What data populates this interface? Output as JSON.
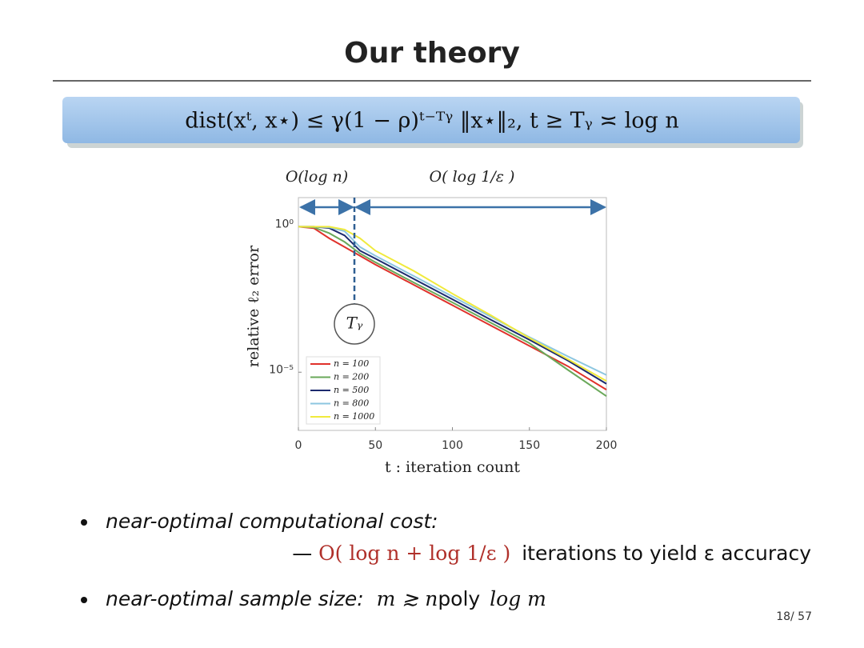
{
  "slide": {
    "title": "Our theory",
    "formula": "dist(xᵗ, x⋆) ≤ γ(1 − ρ)ᵗ⁻ᵀᵞ ‖x⋆‖₂,    t ≥ Tᵧ ≍ log n",
    "annotations": [
      "O(log n)",
      "O( log 1/ε )",
      "Tᵧ"
    ],
    "bullets": [
      {
        "label": "near-optimal computational cost:",
        "dash": "—",
        "formula": "O( log n + log 1/ε )",
        "text": "iterations to yield ε accuracy"
      },
      {
        "label": "near-optimal sample size:",
        "formula": "m ≳ n",
        "text": "poly",
        "formula_tail": "log m"
      }
    ],
    "page": "18/ 57"
  },
  "chart_data": {
    "type": "line",
    "xlabel": "t : iteration count",
    "ylabel": "relative ℓ₂ error",
    "log_y": true,
    "grid": false,
    "legend": "lower left",
    "xlim": [
      0,
      200
    ],
    "xticks": [
      0,
      50,
      100,
      150,
      200
    ],
    "ylim": [
      1e-07,
      10
    ],
    "yticks": [
      {
        "value": 1,
        "label": "10⁰"
      },
      {
        "value": 1e-05,
        "label": "10⁻⁵"
      }
    ],
    "x": [
      0,
      10,
      20,
      30,
      40,
      50,
      75,
      100,
      125,
      150,
      175,
      200
    ],
    "series": [
      {
        "name": "n = 100",
        "color": "#e0312b",
        "values": [
          1,
          0.89,
          0.4,
          0.2,
          0.1,
          0.05,
          0.01,
          0.002,
          0.0004,
          8e-05,
          1.6e-05,
          2.5e-06
        ]
      },
      {
        "name": "n = 200",
        "color": "#6aa85a",
        "values": [
          1,
          0.95,
          0.6,
          0.3,
          0.12,
          0.06,
          0.012,
          0.0025,
          0.0005,
          0.0001,
          1.2e-05,
          1.5e-06
        ]
      },
      {
        "name": "n = 500",
        "color": "#1c2a6e",
        "values": [
          1,
          1,
          0.9,
          0.5,
          0.15,
          0.08,
          0.016,
          0.0032,
          0.00063,
          0.00013,
          2.5e-05,
          4e-06
        ]
      },
      {
        "name": "n = 800",
        "color": "#8cc6e0",
        "values": [
          1,
          1,
          0.95,
          0.7,
          0.2,
          0.1,
          0.02,
          0.004,
          0.0008,
          0.00016,
          3.5e-05,
          8e-06
        ]
      },
      {
        "name": "n = 1000",
        "color": "#f0ea3c",
        "values": [
          1,
          1,
          1,
          0.8,
          0.4,
          0.15,
          0.03,
          0.005,
          0.0009,
          0.00015,
          2.8e-05,
          5e-06
        ]
      }
    ]
  }
}
